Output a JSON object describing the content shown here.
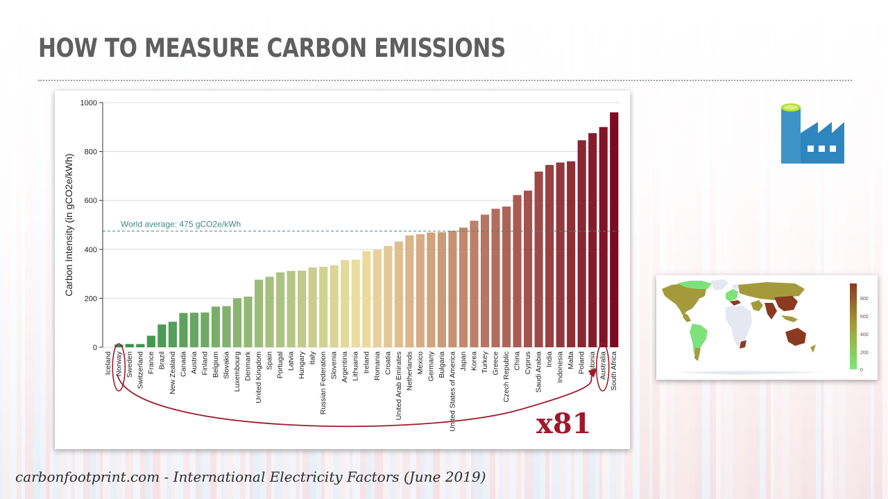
{
  "slide": {
    "title": "HOW TO MEASURE CARBON EMISSIONS",
    "source": "carbonfootprint.com - International Electricity Factors (June 2019)"
  },
  "colors": {
    "accent_red": "#a0182a",
    "average_line": "#3d8a7e",
    "low_intensity": "#1f8a40",
    "high_intensity": "#7b0a22",
    "icon_blue": "#2e8ec8",
    "icon_lime": "#b7e13e"
  },
  "icons": {
    "factory": "factory-icon"
  },
  "annotation": {
    "multiplier": "x81",
    "from": "Norway",
    "to": "Australia"
  },
  "chart_data": {
    "type": "bar",
    "ylabel": "Carbon Intensity (in gCO2e/kWh)",
    "xlabel": "",
    "ylim": [
      0,
      1000
    ],
    "yticks": [
      "0",
      "200",
      "400",
      "600",
      "800",
      "1000"
    ],
    "grid": true,
    "legend": "none",
    "reference_line": {
      "value": 475,
      "label": "World average: 475 gCO2e/kWh"
    },
    "categories": [
      "Iceland",
      "Norway",
      "Sweden",
      "Switzerland",
      "France",
      "Brazil",
      "New Zealand",
      "Canada",
      "Austria",
      "Finland",
      "Belgium",
      "Slovakia",
      "Luxembourg",
      "Denmark",
      "United Kingdom",
      "Spain",
      "Portugal",
      "Latvia",
      "Hungary",
      "Italy",
      "Russian Federation",
      "Slovenia",
      "Argentina",
      "Lithuania",
      "Ireland",
      "Romania",
      "Croatia",
      "United Arab Emirates",
      "Netherlands",
      "Mexico",
      "Germany",
      "Bulgaria",
      "United States of America",
      "Japan",
      "Korea",
      "Turkey",
      "Greece",
      "Czech Republic",
      "China",
      "Cyprus",
      "Saudi Arabia",
      "India",
      "Indonesia",
      "Malta",
      "Poland",
      "Estonia",
      "Australia",
      "South Africa"
    ],
    "values": [
      0,
      11,
      13,
      13,
      47,
      93,
      104,
      140,
      141,
      142,
      166,
      168,
      200,
      207,
      276,
      288,
      306,
      312,
      313,
      326,
      329,
      335,
      356,
      358,
      393,
      398,
      414,
      432,
      457,
      462,
      469,
      470,
      476,
      489,
      517,
      542,
      566,
      575,
      622,
      640,
      718,
      745,
      755,
      760,
      846,
      875,
      900,
      960
    ]
  },
  "map": {
    "legend_ticks": [
      "800",
      "600",
      "400",
      "200",
      "0"
    ],
    "legend_min_color": "#7ce87a",
    "legend_mid_color": "#a3a03a",
    "legend_max_color": "#8a3a22"
  }
}
